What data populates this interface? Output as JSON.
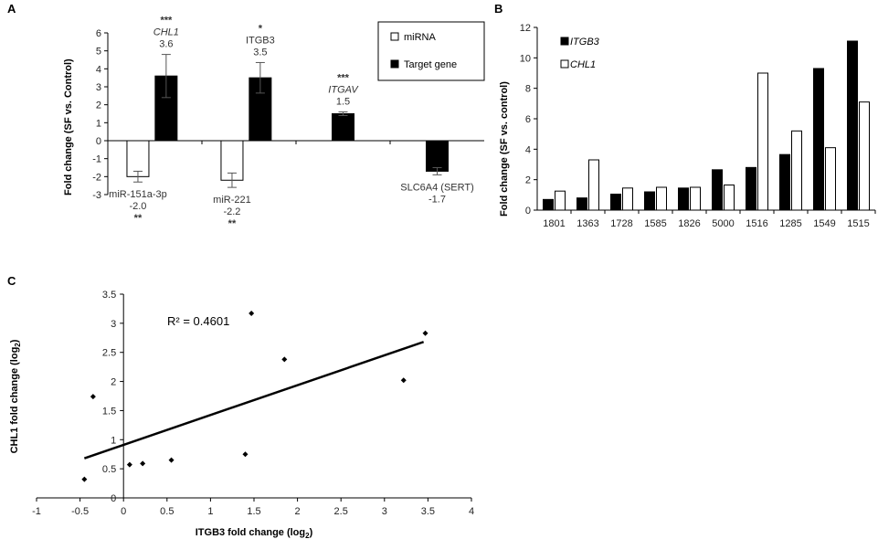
{
  "panel_labels": {
    "a": "A",
    "b": "B",
    "c": "C"
  },
  "chart_data": [
    {
      "type": "bar",
      "panel": "A",
      "ylabel": "Fold change (SF vs. Control)",
      "ylim": [
        -3,
        6
      ],
      "yticks": [
        -3,
        -2,
        -1,
        0,
        1,
        2,
        3,
        4,
        5,
        6
      ],
      "legend": {
        "position": "top-right",
        "entries": [
          "miRNA",
          "Target gene"
        ]
      },
      "groups": [
        {
          "mirna": {
            "label": "miR-151a-3p",
            "value": -2.0,
            "value_text": "-2.0",
            "err": 0.3,
            "sig": "**"
          },
          "target": {
            "label": "CHL1",
            "value": 3.6,
            "value_text": "3.6",
            "err": 1.2,
            "sig": "***",
            "italic": true
          }
        },
        {
          "mirna": {
            "label": "miR-221",
            "value": -2.2,
            "value_text": "-2.2",
            "err": 0.4,
            "sig": "**"
          },
          "target": {
            "label": "ITGB3",
            "value": 3.5,
            "value_text": "3.5",
            "err": 0.85,
            "sig": "*",
            "italic": false
          }
        },
        {
          "target": {
            "label": "ITGAV",
            "value": 1.5,
            "value_text": "1.5",
            "err": 0.1,
            "sig": "***",
            "italic": true
          }
        },
        {
          "target_label_below": true,
          "target": {
            "label": "SLC6A4 (SERT)",
            "value": -1.7,
            "value_text": "-1.7",
            "err": 0.2,
            "sig": "",
            "italic": false
          }
        }
      ]
    },
    {
      "type": "bar",
      "panel": "B",
      "ylabel": "Fold change (SF vs. control)",
      "ylim": [
        0,
        12
      ],
      "yticks": [
        0,
        2,
        4,
        6,
        8,
        10,
        12
      ],
      "categories": [
        "1801",
        "1363",
        "1728",
        "1585",
        "1826",
        "5000",
        "1516",
        "1285",
        "1549",
        "1515"
      ],
      "legend": {
        "position": "top-left"
      },
      "series": [
        {
          "name": "ITGB3",
          "fill": "#000000",
          "values": [
            0.7,
            0.8,
            1.05,
            1.2,
            1.45,
            2.65,
            2.8,
            3.65,
            9.3,
            11.1
          ]
        },
        {
          "name": "CHL1",
          "fill": "#ffffff",
          "values": [
            1.25,
            3.3,
            1.45,
            1.5,
            1.5,
            1.65,
            9.0,
            5.2,
            4.1,
            7.1
          ]
        }
      ]
    },
    {
      "type": "scatter",
      "panel": "C",
      "xlabel": "ITGB3 fold change (log",
      "ylabel": "CHL1 fold change (log",
      "label_subscript": "2",
      "xlim": [
        -1,
        4
      ],
      "ylim": [
        0,
        3.5
      ],
      "xticks": [
        "-1",
        "-0.5",
        "0",
        "0.5",
        "1",
        "1.5",
        "2",
        "2.5",
        "3",
        "3.5",
        "4"
      ],
      "yticks": [
        "0",
        "0.5",
        "1",
        "1.5",
        "2",
        "2.5",
        "3",
        "3.5"
      ],
      "r2_text": "R² = 0.4601",
      "trendline": {
        "x0": -0.45,
        "y0": 0.68,
        "x1": 3.45,
        "y1": 2.68
      },
      "points": [
        {
          "x": -0.45,
          "y": 0.32
        },
        {
          "x": -0.35,
          "y": 1.74
        },
        {
          "x": 0.07,
          "y": 0.57
        },
        {
          "x": 0.22,
          "y": 0.59
        },
        {
          "x": 0.55,
          "y": 0.65
        },
        {
          "x": 1.4,
          "y": 0.75
        },
        {
          "x": 1.47,
          "y": 3.17
        },
        {
          "x": 1.85,
          "y": 2.38
        },
        {
          "x": 3.22,
          "y": 2.02
        },
        {
          "x": 3.47,
          "y": 2.83
        }
      ]
    }
  ]
}
